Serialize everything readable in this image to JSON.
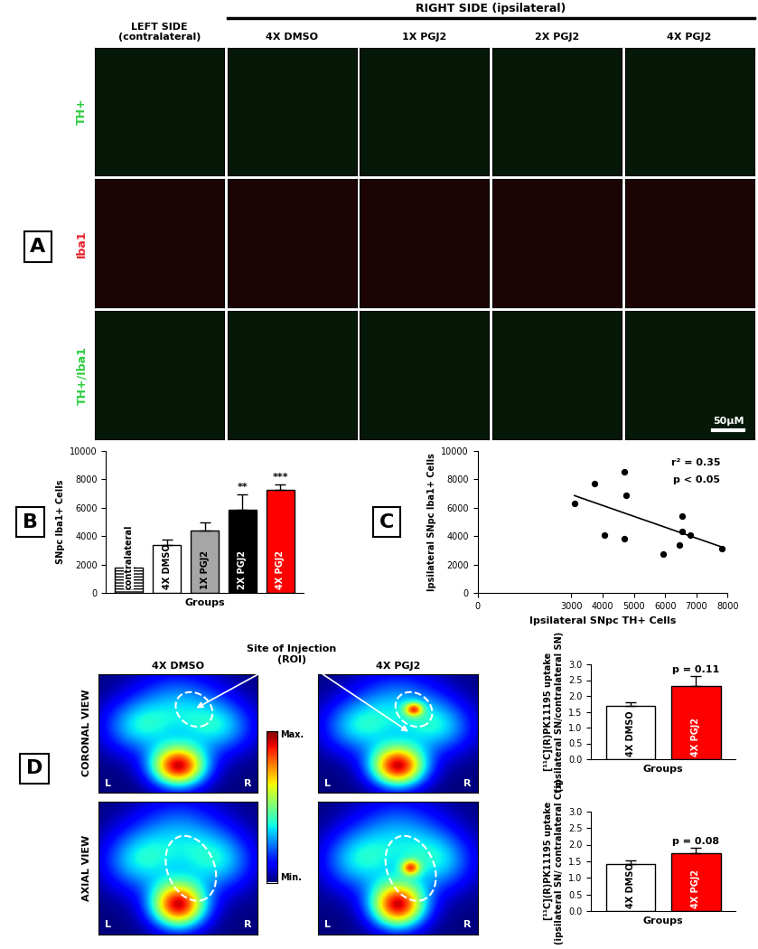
{
  "figure": {
    "panel_labels": [
      "A",
      "B",
      "C",
      "D"
    ],
    "panel_a": {
      "left_header": "LEFT SIDE\n(contralateral)",
      "right_header": "RIGHT SIDE (ipsilateral)",
      "columns": [
        "4X DMSO",
        "1X PGJ2",
        "2X PGJ2",
        "4X PGJ2"
      ],
      "rows": [
        {
          "name": "TH+",
          "color": "#2ecc40"
        },
        {
          "name": "Iba1",
          "color": "#e8202a"
        },
        {
          "name": "TH+/Iba1",
          "color": "#2ecc40"
        }
      ],
      "scale_bar": "50μM"
    },
    "panel_d_images": {
      "columns": [
        "4X DMSO",
        "4X PGJ2"
      ],
      "rows": [
        "CORONAL VIEW",
        "AXIAL VIEW"
      ],
      "roi_label": "Site of Injection\n(ROI)",
      "colorbar_labels": [
        "Max.",
        "Min."
      ],
      "sides": [
        "L",
        "R"
      ]
    }
  },
  "chart_data": [
    {
      "type": "bar",
      "categories": [
        "contralateral",
        "4X DMSO",
        "1X PGJ2",
        "2X PGJ2",
        "4X PGJ2"
      ],
      "values": [
        1800,
        3350,
        4400,
        5850,
        7250
      ],
      "errors": [
        0,
        400,
        600,
        1100,
        400
      ],
      "colors": [
        "#ffffff",
        "#ffffff",
        "#a6a6a6",
        "#000000",
        "#ff0000"
      ],
      "xlabel": "Groups",
      "ylabel": "SNpc Iba1+ Cells",
      "ylim": [
        0,
        10000
      ],
      "yticks": [
        0,
        2000,
        4000,
        6000,
        8000,
        10000
      ],
      "tick_labels": "y",
      "annotations": [
        {
          "category": "2X PGJ2",
          "text": "**"
        },
        {
          "category": "4X PGJ2",
          "text": "***"
        }
      ]
    },
    {
      "type": "scatter",
      "x": [
        3100,
        3750,
        4050,
        4700,
        4700,
        4750,
        5950,
        6450,
        6550,
        6550,
        6800,
        7800
      ],
      "values": [
        6300,
        7700,
        4050,
        8500,
        3800,
        6850,
        2750,
        3350,
        5400,
        4350,
        4100,
        3100
      ],
      "fit": {
        "x": [
          3100,
          7800
        ],
        "values": [
          6850,
          3250
        ]
      },
      "color": "#000000",
      "xlabel": "Ipsilateral SNpc TH+ Cells",
      "ylabel": "Ipsilateral SNpc Iba1+ Cells",
      "xlim": [
        0,
        8000
      ],
      "xticks": [
        0,
        3000,
        4000,
        5000,
        6000,
        7000,
        8000
      ],
      "ylim": [
        0,
        10000
      ],
      "yticks": [
        0,
        2000,
        4000,
        6000,
        8000,
        10000
      ],
      "annotations": [
        {
          "text": "r² = 0.35"
        },
        {
          "text": "p < 0.05"
        }
      ]
    },
    {
      "type": "bar",
      "categories": [
        "4X DMSO",
        "4X PGJ2"
      ],
      "values": [
        1.68,
        2.32
      ],
      "errors": [
        0.13,
        0.3
      ],
      "colors": [
        "#ffffff",
        "#ff0000"
      ],
      "xlabel": "Groups",
      "ylabel": "[¹¹C](R)PK11195 uptake\n(ipsilateral SN/contralateral SN)",
      "ylim": [
        0,
        3
      ],
      "yticks": [
        {
          "value": 0,
          "label": "0.0"
        },
        {
          "value": 0.5,
          "label": "0.5"
        },
        {
          "value": 1,
          "label": "1.0"
        },
        {
          "value": 1.5,
          "label": "1.5"
        },
        {
          "value": 2,
          "label": "2.0"
        },
        {
          "value": 2.5,
          "label": "2.5"
        },
        {
          "value": 3,
          "label": "3.0"
        }
      ],
      "tick_labels": "y",
      "annotations": [
        {
          "category": "4X PGJ2",
          "text": "p = 0.11"
        }
      ]
    },
    {
      "type": "bar",
      "categories": [
        "4X DMSO",
        "4X PGJ2"
      ],
      "values": [
        1.42,
        1.75
      ],
      "errors": [
        0.1,
        0.15
      ],
      "colors": [
        "#ffffff",
        "#ff0000"
      ],
      "xlabel": "Groups",
      "ylabel": "[¹¹C](R)PK11195 uptake\n(ipsilateral SN/ contralateral Ctx)",
      "ylim": [
        0,
        3
      ],
      "yticks": [
        {
          "value": 0,
          "label": "0.0"
        },
        {
          "value": 0.5,
          "label": "0.5"
        },
        {
          "value": 1,
          "label": "1.0"
        },
        {
          "value": 1.5,
          "label": "1.5"
        },
        {
          "value": 2,
          "label": "2.0"
        },
        {
          "value": 2.5,
          "label": "2.5"
        },
        {
          "value": 3,
          "label": "3.0"
        }
      ],
      "tick_labels": "y",
      "annotations": [
        {
          "category": "4X PGJ2",
          "text": "p = 0.08"
        }
      ]
    }
  ]
}
